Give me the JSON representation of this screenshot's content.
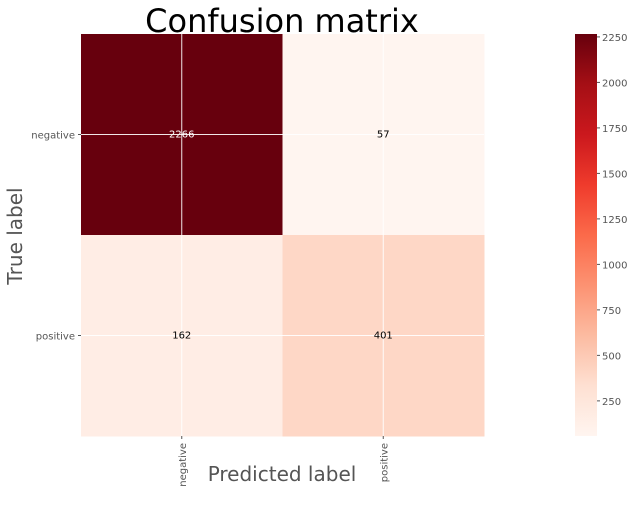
{
  "chart_data": {
    "type": "heatmap",
    "title": "Confusion matrix",
    "xlabel": "Predicted label",
    "ylabel": "True label",
    "x_categories": [
      "negative",
      "positive"
    ],
    "y_categories": [
      "negative",
      "positive"
    ],
    "values": [
      [
        2266,
        57
      ],
      [
        162,
        401
      ]
    ],
    "colormap": "Reds",
    "colorbar": {
      "range": [
        57,
        2266
      ],
      "ticks": [
        250,
        500,
        750,
        1000,
        1250,
        1500,
        1750,
        2000,
        2250
      ],
      "tick_labels": [
        "250",
        "500",
        "750",
        "1000",
        "1250",
        "1500",
        "1750",
        "2000",
        "2250"
      ]
    },
    "grid": true,
    "text_colors": {
      "light": "#ffffff",
      "dark": "#000000"
    }
  }
}
